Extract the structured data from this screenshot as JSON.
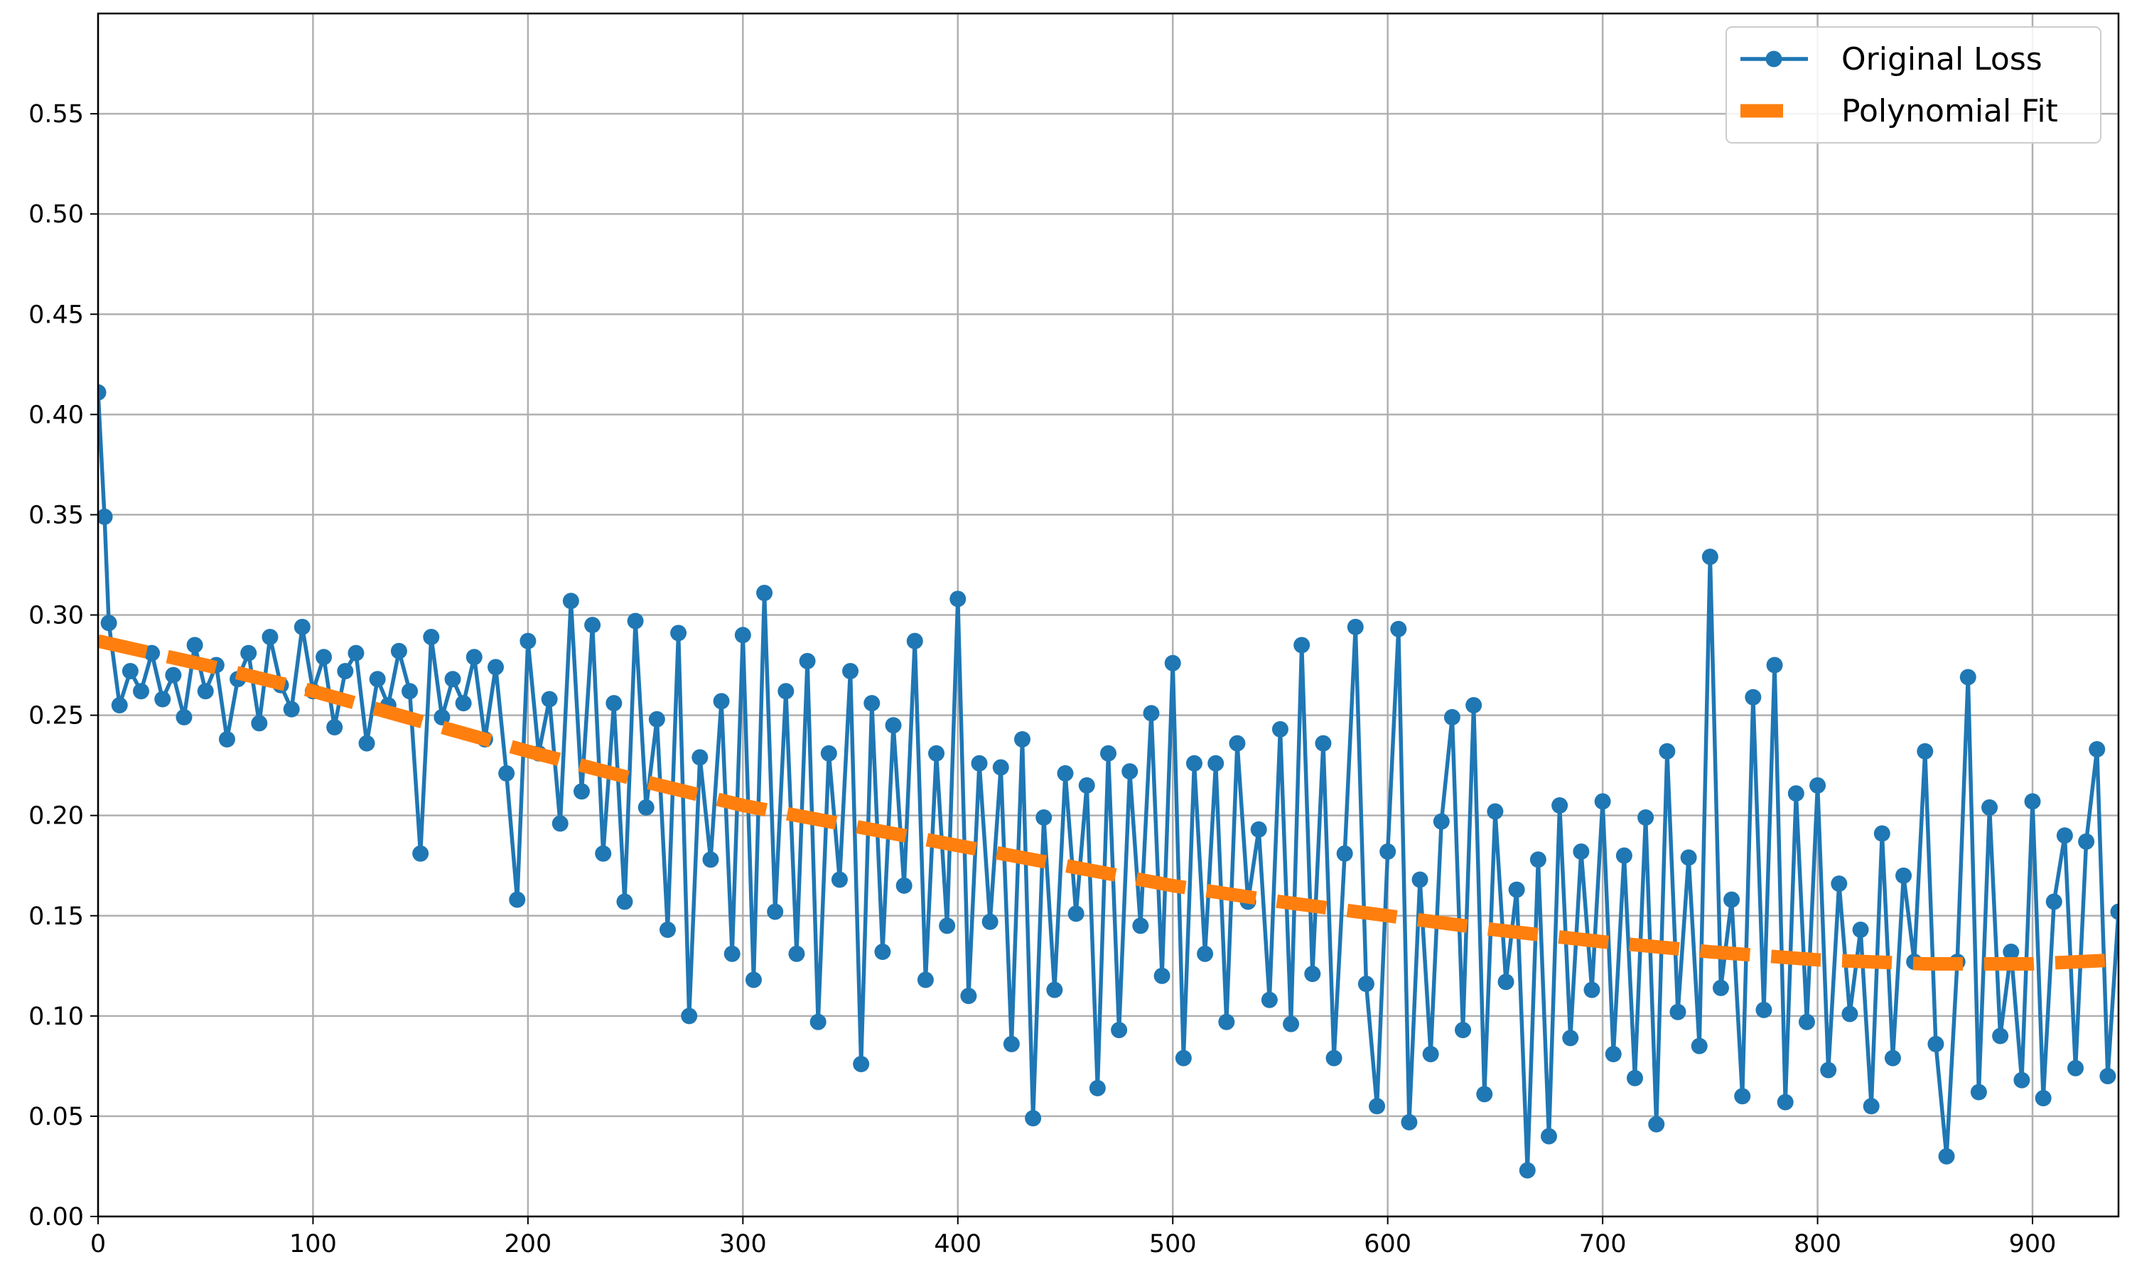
{
  "chart_data": {
    "type": "line",
    "xlim": [
      0,
      940
    ],
    "ylim": [
      0,
      0.6
    ],
    "xticks": [
      0,
      100,
      200,
      300,
      400,
      500,
      600,
      700,
      800,
      900
    ],
    "yticks": [
      {
        "value": 0,
        "label": "0.00"
      },
      {
        "value": 0.05,
        "label": "0.05"
      },
      {
        "value": 0.1,
        "label": "0.10"
      },
      {
        "value": 0.15,
        "label": "0.15"
      },
      {
        "value": 0.2,
        "label": "0.20"
      },
      {
        "value": 0.25,
        "label": "0.25"
      },
      {
        "value": 0.3,
        "label": "0.30"
      },
      {
        "value": 0.35,
        "label": "0.35"
      },
      {
        "value": 0.4,
        "label": "0.40"
      },
      {
        "value": 0.45,
        "label": "0.45"
      },
      {
        "value": 0.5,
        "label": "0.50"
      },
      {
        "value": 0.55,
        "label": "0.55"
      }
    ],
    "grid": true,
    "legend": "upper right",
    "series": [
      {
        "name": "Original Loss",
        "color": "#1f77b4",
        "marker": "circle",
        "linestyle": "solid",
        "x": [
          0,
          3,
          5,
          10,
          15,
          20,
          25,
          30,
          35,
          40,
          45,
          50,
          55,
          60,
          65,
          70,
          75,
          80,
          85,
          90,
          95,
          100,
          105,
          110,
          115,
          120,
          125,
          130,
          135,
          140,
          145,
          150,
          155,
          160,
          165,
          170,
          175,
          180,
          185,
          190,
          195,
          200,
          205,
          210,
          215,
          220,
          225,
          230,
          235,
          240,
          245,
          250,
          255,
          260,
          265,
          270,
          275,
          280,
          285,
          290,
          295,
          300,
          305,
          310,
          315,
          320,
          325,
          330,
          335,
          340,
          345,
          350,
          355,
          360,
          365,
          370,
          375,
          380,
          385,
          390,
          395,
          400,
          405,
          410,
          415,
          420,
          425,
          430,
          435,
          440,
          445,
          450,
          455,
          460,
          465,
          470,
          475,
          480,
          485,
          490,
          495,
          500,
          505,
          510,
          515,
          520,
          525,
          530,
          535,
          540,
          545,
          550,
          555,
          560,
          565,
          570,
          575,
          580,
          585,
          590,
          595,
          600,
          605,
          610,
          615,
          620,
          625,
          630,
          635,
          640,
          645,
          650,
          655,
          660,
          665,
          670,
          675,
          680,
          685,
          690,
          695,
          700,
          705,
          710,
          715,
          720,
          725,
          730,
          735,
          740,
          745,
          750,
          755,
          760,
          765,
          770,
          775,
          780,
          785,
          790,
          795,
          800,
          805,
          810,
          815,
          820,
          825,
          830,
          835,
          840,
          845,
          850,
          855,
          860,
          865,
          870,
          875,
          880,
          885,
          890,
          895,
          900,
          905,
          910,
          915,
          920,
          925,
          930,
          935,
          940
        ],
        "values": [
          0.411,
          0.349,
          0.296,
          0.255,
          0.272,
          0.262,
          0.281,
          0.258,
          0.27,
          0.249,
          0.285,
          0.262,
          0.275,
          0.238,
          0.268,
          0.281,
          0.246,
          0.289,
          0.265,
          0.253,
          0.294,
          0.262,
          0.279,
          0.244,
          0.272,
          0.281,
          0.236,
          0.268,
          0.255,
          0.282,
          0.262,
          0.181,
          0.289,
          0.249,
          0.268,
          0.256,
          0.279,
          0.238,
          0.274,
          0.221,
          0.158,
          0.287,
          0.231,
          0.258,
          0.196,
          0.307,
          0.212,
          0.295,
          0.181,
          0.256,
          0.157,
          0.297,
          0.204,
          0.248,
          0.143,
          0.291,
          0.1,
          0.229,
          0.178,
          0.257,
          0.131,
          0.29,
          0.118,
          0.311,
          0.152,
          0.262,
          0.131,
          0.277,
          0.097,
          0.231,
          0.168,
          0.272,
          0.076,
          0.256,
          0.132,
          0.245,
          0.165,
          0.287,
          0.118,
          0.231,
          0.145,
          0.308,
          0.11,
          0.226,
          0.147,
          0.224,
          0.086,
          0.238,
          0.049,
          0.199,
          0.113,
          0.221,
          0.151,
          0.215,
          0.064,
          0.231,
          0.093,
          0.222,
          0.145,
          0.251,
          0.12,
          0.276,
          0.079,
          0.226,
          0.131,
          0.226,
          0.097,
          0.236,
          0.157,
          0.193,
          0.108,
          0.243,
          0.096,
          0.285,
          0.121,
          0.236,
          0.079,
          0.181,
          0.294,
          0.116,
          0.055,
          0.182,
          0.293,
          0.047,
          0.168,
          0.081,
          0.197,
          0.249,
          0.093,
          0.255,
          0.061,
          0.202,
          0.117,
          0.163,
          0.023,
          0.178,
          0.04,
          0.205,
          0.089,
          0.182,
          0.113,
          0.207,
          0.081,
          0.18,
          0.069,
          0.199,
          0.046,
          0.232,
          0.102,
          0.179,
          0.085,
          0.329,
          0.114,
          0.158,
          0.06,
          0.259,
          0.103,
          0.275,
          0.057,
          0.211,
          0.097,
          0.215,
          0.073,
          0.166,
          0.101,
          0.143,
          0.055,
          0.191,
          0.079,
          0.17,
          0.127,
          0.232,
          0.086,
          0.03,
          0.127,
          0.269,
          0.062,
          0.204,
          0.09,
          0.132,
          0.068,
          0.207,
          0.059,
          0.157,
          0.19,
          0.074,
          0.187,
          0.233,
          0.07,
          0.152
        ]
      },
      {
        "name": "Polynomial Fit",
        "color": "#ff7f0e",
        "marker": "none",
        "linestyle": "dashed",
        "x": [
          0,
          50,
          100,
          150,
          200,
          250,
          300,
          350,
          400,
          450,
          500,
          550,
          600,
          650,
          700,
          750,
          800,
          850,
          900,
          940
        ],
        "values": [
          0.287,
          0.275,
          0.262,
          0.247,
          0.232,
          0.218,
          0.205,
          0.195,
          0.185,
          0.175,
          0.165,
          0.157,
          0.15,
          0.143,
          0.137,
          0.132,
          0.128,
          0.126,
          0.126,
          0.128
        ]
      }
    ]
  }
}
